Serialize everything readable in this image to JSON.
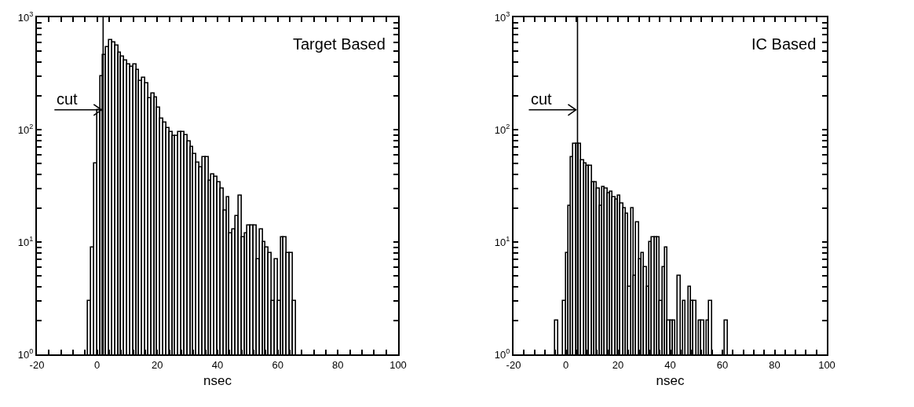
{
  "chart_data": [
    {
      "type": "histogram",
      "title": "Target Based",
      "xlabel": "nsec",
      "color": "#000000",
      "log": true,
      "xlim": [
        -20,
        100
      ],
      "ylim": [
        1,
        1000
      ],
      "bins": [
        -3,
        -2,
        -1,
        0,
        1,
        2,
        3,
        4,
        5,
        6,
        7,
        8,
        9,
        10,
        11,
        12,
        13,
        14,
        15,
        16,
        17,
        18,
        19,
        20,
        21,
        22,
        23,
        24,
        25,
        26,
        27,
        28,
        29,
        30,
        31,
        32,
        33,
        34,
        35,
        36,
        37,
        38,
        39,
        40,
        41,
        42,
        43,
        44,
        45,
        46,
        47,
        48,
        49,
        50,
        51,
        52,
        53,
        54,
        55,
        56,
        57,
        58,
        59,
        60,
        61,
        62,
        63,
        64,
        65,
        66
      ],
      "values": [
        3,
        9,
        50,
        150,
        300,
        460,
        540,
        630,
        600,
        560,
        485,
        450,
        410,
        380,
        360,
        380,
        340,
        270,
        290,
        260,
        190,
        210,
        195,
        158,
        126,
        115,
        103,
        95,
        88,
        88,
        95,
        95,
        90,
        78,
        70,
        61,
        51,
        46,
        57,
        57,
        35,
        40,
        38,
        34,
        30,
        19,
        25,
        12,
        13,
        17,
        26,
        11,
        12,
        14,
        14,
        14,
        7,
        13,
        10,
        9,
        8,
        3,
        7,
        3,
        11,
        11,
        8,
        8,
        3
      ],
      "xticks": [
        -20,
        {
          "value": -16,
          "label": null
        },
        {
          "value": -12,
          "label": null
        },
        {
          "value": -8,
          "label": null
        },
        {
          "value": -4,
          "label": null
        },
        0,
        {
          "value": 4,
          "label": null
        },
        {
          "value": 8,
          "label": null
        },
        {
          "value": 12,
          "label": null
        },
        {
          "value": 16,
          "label": null
        },
        20,
        {
          "value": 24,
          "label": null
        },
        {
          "value": 28,
          "label": null
        },
        {
          "value": 32,
          "label": null
        },
        {
          "value": 36,
          "label": null
        },
        40,
        {
          "value": 44,
          "label": null
        },
        {
          "value": 48,
          "label": null
        },
        {
          "value": 52,
          "label": null
        },
        {
          "value": 56,
          "label": null
        },
        60,
        {
          "value": 64,
          "label": null
        },
        {
          "value": 68,
          "label": null
        },
        {
          "value": 72,
          "label": null
        },
        {
          "value": 76,
          "label": null
        },
        80,
        {
          "value": 84,
          "label": null
        },
        {
          "value": 88,
          "label": null
        },
        {
          "value": 92,
          "label": null
        },
        {
          "value": 96,
          "label": null
        },
        100
      ],
      "yticks": [
        {
          "value": 1,
          "label": "10$^{0}$"
        },
        {
          "value": 2,
          "label": null
        },
        {
          "value": 3,
          "label": null
        },
        {
          "value": 4,
          "label": null
        },
        {
          "value": 5,
          "label": null
        },
        {
          "value": 6,
          "label": null
        },
        {
          "value": 7,
          "label": null
        },
        {
          "value": 8,
          "label": null
        },
        {
          "value": 9,
          "label": null
        },
        {
          "value": 10,
          "label": "10$^{1}$"
        },
        {
          "value": 20,
          "label": null
        },
        {
          "value": 30,
          "label": null
        },
        {
          "value": 40,
          "label": null
        },
        {
          "value": 50,
          "label": null
        },
        {
          "value": 60,
          "label": null
        },
        {
          "value": 70,
          "label": null
        },
        {
          "value": 80,
          "label": null
        },
        {
          "value": 90,
          "label": null
        },
        {
          "value": 100,
          "label": "10$^{2}$"
        },
        {
          "value": 200,
          "label": null
        },
        {
          "value": 300,
          "label": null
        },
        {
          "value": 400,
          "label": null
        },
        {
          "value": 500,
          "label": null
        },
        {
          "value": 600,
          "label": null
        },
        {
          "value": 700,
          "label": null
        },
        {
          "value": 800,
          "label": null
        },
        {
          "value": 900,
          "label": null
        },
        {
          "value": 1000,
          "label": "10$^{3}$"
        }
      ],
      "ref_lines": [
        {
          "axis": "x",
          "value": 2,
          "color": "#000000",
          "line_style": "solid"
        }
      ],
      "annotations": [
        {
          "text": "cut",
          "x": 2,
          "y": 150
        }
      ]
    },
    {
      "type": "histogram",
      "title": "IC Based",
      "xlabel": "nsec",
      "color": "#000000",
      "log": true,
      "xlim": [
        -20,
        100
      ],
      "ylim": [
        1,
        1000
      ],
      "bins": [
        -4,
        -3,
        -2,
        -1,
        0,
        1,
        2,
        3,
        4,
        5,
        6,
        7,
        8,
        9,
        10,
        11,
        12,
        13,
        14,
        15,
        16,
        17,
        18,
        19,
        20,
        21,
        22,
        23,
        24,
        25,
        26,
        27,
        28,
        29,
        30,
        31,
        32,
        33,
        34,
        35,
        36,
        37,
        38,
        39,
        40,
        41,
        42,
        43,
        44,
        45,
        46,
        47,
        48,
        49,
        50,
        51,
        52,
        53,
        54,
        55,
        56,
        57,
        58,
        59,
        60,
        61,
        62
      ],
      "values": [
        2,
        null,
        null,
        3,
        8,
        21,
        57,
        75,
        75,
        75,
        53,
        50,
        48,
        48,
        34,
        34,
        30,
        21,
        31,
        30,
        27,
        28,
        25,
        24,
        26,
        22,
        20,
        18,
        4,
        20,
        5,
        15,
        7,
        8,
        6,
        4,
        10,
        11,
        11,
        11,
        3,
        6,
        9,
        2,
        2,
        2,
        null,
        5,
        null,
        3,
        null,
        4,
        3,
        3,
        null,
        2,
        2,
        null,
        2,
        3,
        null,
        null,
        null,
        null,
        null,
        2
      ],
      "xticks": [
        -20,
        {
          "value": -16,
          "label": null
        },
        {
          "value": -12,
          "label": null
        },
        {
          "value": -8,
          "label": null
        },
        {
          "value": -4,
          "label": null
        },
        0,
        {
          "value": 4,
          "label": null
        },
        {
          "value": 8,
          "label": null
        },
        {
          "value": 12,
          "label": null
        },
        {
          "value": 16,
          "label": null
        },
        20,
        {
          "value": 24,
          "label": null
        },
        {
          "value": 28,
          "label": null
        },
        {
          "value": 32,
          "label": null
        },
        {
          "value": 36,
          "label": null
        },
        40,
        {
          "value": 44,
          "label": null
        },
        {
          "value": 48,
          "label": null
        },
        {
          "value": 52,
          "label": null
        },
        {
          "value": 56,
          "label": null
        },
        60,
        {
          "value": 64,
          "label": null
        },
        {
          "value": 68,
          "label": null
        },
        {
          "value": 72,
          "label": null
        },
        {
          "value": 76,
          "label": null
        },
        80,
        {
          "value": 84,
          "label": null
        },
        {
          "value": 88,
          "label": null
        },
        {
          "value": 92,
          "label": null
        },
        {
          "value": 96,
          "label": null
        },
        100
      ],
      "yticks": [
        {
          "value": 1,
          "label": "10$^{0}$"
        },
        {
          "value": 2,
          "label": null
        },
        {
          "value": 3,
          "label": null
        },
        {
          "value": 4,
          "label": null
        },
        {
          "value": 5,
          "label": null
        },
        {
          "value": 6,
          "label": null
        },
        {
          "value": 7,
          "label": null
        },
        {
          "value": 8,
          "label": null
        },
        {
          "value": 9,
          "label": null
        },
        {
          "value": 10,
          "label": "10$^{1}$"
        },
        {
          "value": 20,
          "label": null
        },
        {
          "value": 30,
          "label": null
        },
        {
          "value": 40,
          "label": null
        },
        {
          "value": 50,
          "label": null
        },
        {
          "value": 60,
          "label": null
        },
        {
          "value": 70,
          "label": null
        },
        {
          "value": 80,
          "label": null
        },
        {
          "value": 90,
          "label": null
        },
        {
          "value": 100,
          "label": "10$^{2}$"
        },
        {
          "value": 200,
          "label": null
        },
        {
          "value": 300,
          "label": null
        },
        {
          "value": 400,
          "label": null
        },
        {
          "value": 500,
          "label": null
        },
        {
          "value": 600,
          "label": null
        },
        {
          "value": 700,
          "label": null
        },
        {
          "value": 800,
          "label": null
        },
        {
          "value": 900,
          "label": null
        },
        {
          "value": 1000,
          "label": "10$^{3}$"
        }
      ],
      "ref_lines": [
        {
          "axis": "x",
          "value": 4.5,
          "color": "#000000",
          "line_style": "solid"
        }
      ],
      "annotations": [
        {
          "text": "cut",
          "x": 4.5,
          "y": 150
        }
      ]
    }
  ]
}
